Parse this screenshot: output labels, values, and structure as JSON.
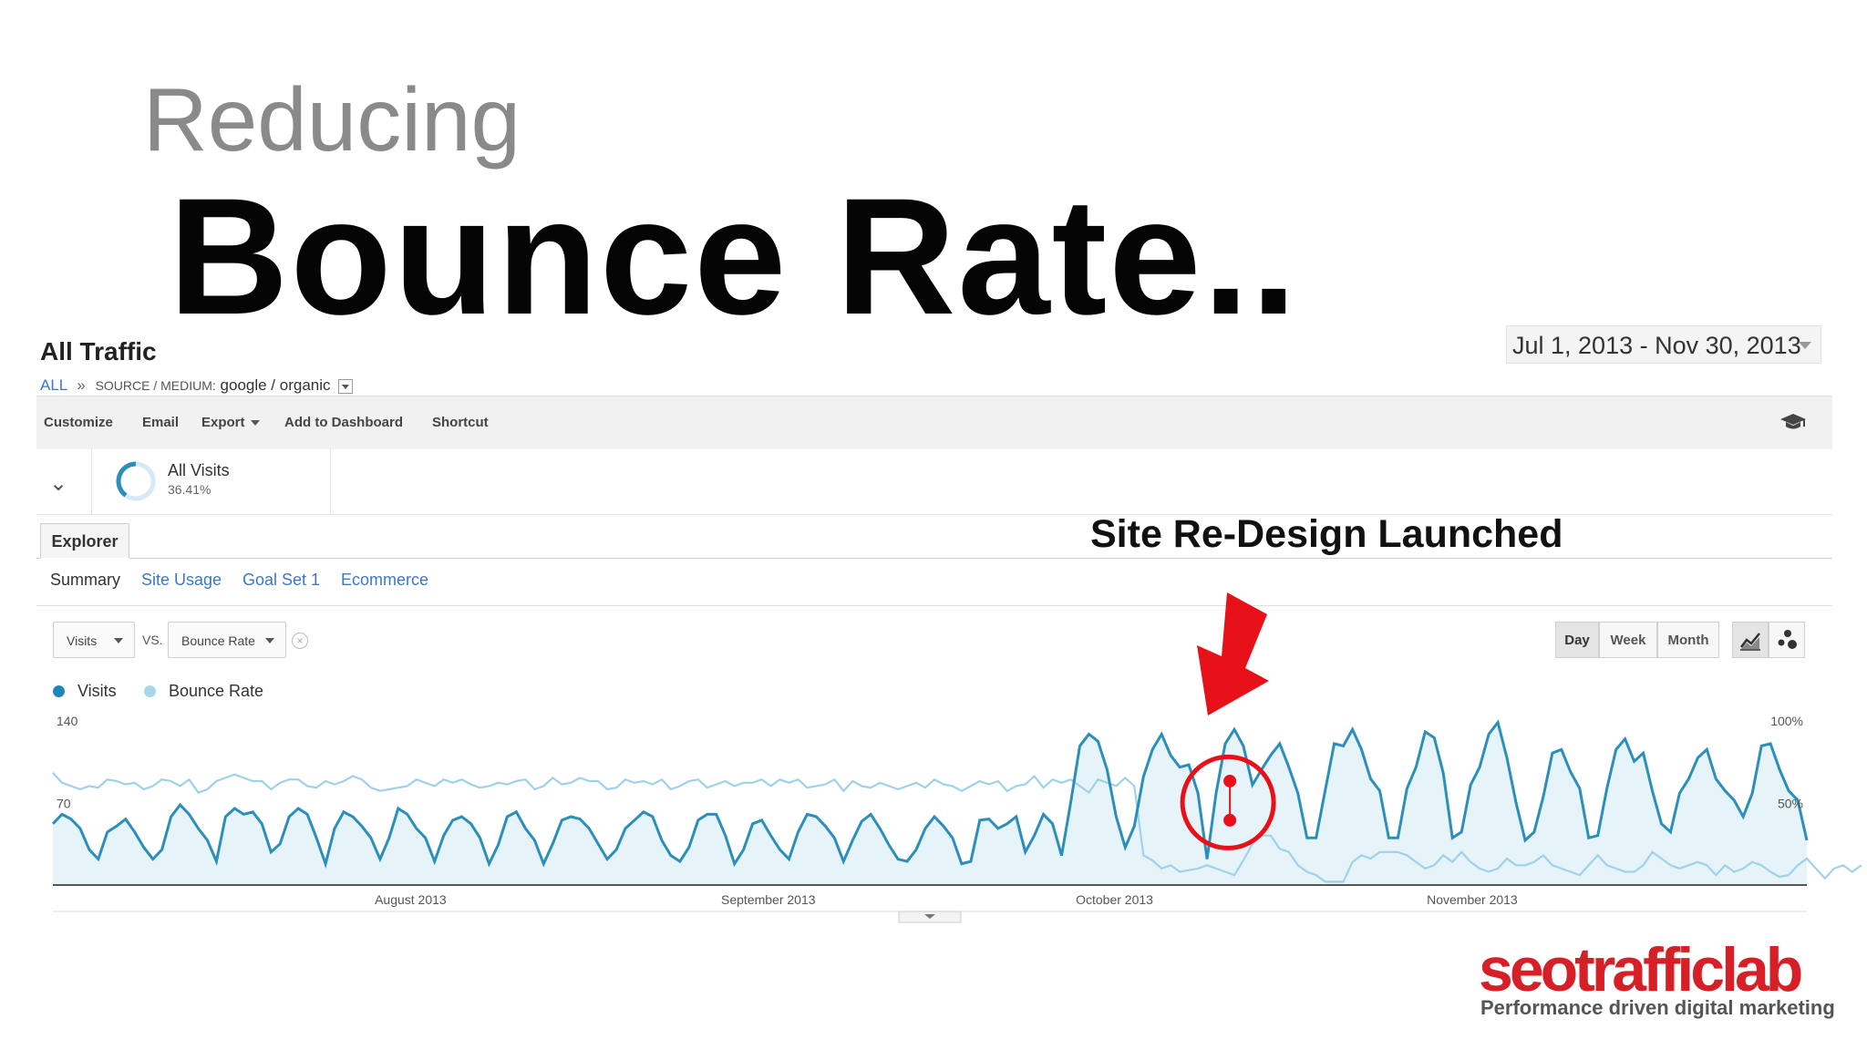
{
  "slide": {
    "subtitle": "Reducing",
    "title": "Bounce Rate..",
    "annotation": "Site Re-Design Launched",
    "brand": {
      "logo": "seotrafficlab",
      "tagline": "Performance driven digital marketing",
      "logo_color": "#d61f26"
    }
  },
  "ga": {
    "report_title": "All Traffic",
    "date_range": "Jul 1, 2013 - Nov 30, 2013",
    "breadcrumb": {
      "all": "ALL",
      "sep": "»",
      "dimension": "SOURCE / MEDIUM:",
      "value": "google / organic"
    },
    "toolbar": {
      "customize": "Customize",
      "email": "Email",
      "export": "Export",
      "add_to_dashboard": "Add to Dashboard",
      "shortcut": "Shortcut"
    },
    "segment": {
      "name": "All Visits",
      "percent": "36.41%"
    },
    "tabs": {
      "explorer": "Explorer"
    },
    "subtabs": {
      "summary": "Summary",
      "site_usage": "Site Usage",
      "goal_set": "Goal Set 1",
      "ecommerce": "Ecommerce"
    },
    "metric_primary": "Visits",
    "vs": "VS.",
    "metric_compare": "Bounce Rate",
    "granularity": {
      "day": "Day",
      "week": "Week",
      "month": "Month",
      "active": "Day"
    },
    "legend": {
      "visits": "Visits",
      "bounce": "Bounce Rate"
    },
    "colors": {
      "visits": "#2b8fba",
      "bounce": "#9fd2e8",
      "highlight": "#e8111a"
    }
  },
  "chart_data": {
    "type": "line",
    "x_range": [
      "2013-07-01",
      "2013-11-30"
    ],
    "x_tick_labels": [
      "August 2013",
      "September 2013",
      "October 2013",
      "November 2013"
    ],
    "y_left_ticks": [
      "140",
      "70"
    ],
    "y_left_range": [
      0,
      140
    ],
    "y_right_ticks": [
      "100%",
      "50%"
    ],
    "y_right_range": [
      0,
      100
    ],
    "series": [
      {
        "name": "Visits",
        "axis": "left",
        "values": [
          52,
          60,
          56,
          48,
          30,
          22,
          45,
          50,
          56,
          45,
          32,
          22,
          30,
          58,
          68,
          60,
          48,
          38,
          20,
          58,
          65,
          60,
          62,
          52,
          28,
          35,
          58,
          65,
          60,
          40,
          18,
          48,
          62,
          58,
          50,
          40,
          22,
          40,
          65,
          60,
          48,
          40,
          20,
          42,
          55,
          58,
          52,
          40,
          18,
          34,
          58,
          62,
          48,
          38,
          18,
          35,
          55,
          58,
          56,
          48,
          35,
          22,
          30,
          48,
          55,
          62,
          58,
          38,
          25,
          20,
          32,
          55,
          60,
          60,
          42,
          18,
          30,
          52,
          55,
          42,
          30,
          22,
          45,
          60,
          58,
          50,
          40,
          20,
          38,
          54,
          60,
          48,
          34,
          22,
          20,
          30,
          48,
          58,
          50,
          40,
          18,
          20,
          55,
          56,
          48,
          52,
          58,
          28,
          42,
          60,
          52,
          25,
          70,
          118,
          128,
          122,
          98,
          58,
          32,
          50,
          92,
          115,
          128,
          110,
          100,
          102,
          78,
          22,
          78,
          120,
          132,
          118,
          85,
          98,
          110,
          120,
          100,
          78,
          40,
          40,
          80,
          120,
          118,
          132,
          115,
          90,
          80,
          40,
          40,
          82,
          100,
          130,
          125,
          95,
          40,
          45,
          85,
          100,
          128,
          138,
          108,
          70,
          38,
          45,
          75,
          112,
          115,
          96,
          82,
          40,
          42,
          82,
          115,
          124,
          105,
          112,
          80,
          52,
          45,
          78,
          90,
          108,
          115,
          90,
          80,
          72,
          58,
          78,
          118,
          120,
          98,
          80,
          72,
          38
        ]
      },
      {
        "name": "Bounce Rate",
        "axis": "right",
        "values": [
          68,
          62,
          60,
          58,
          60,
          59,
          64,
          63,
          61,
          62,
          58,
          60,
          64,
          63,
          60,
          64,
          56,
          58,
          63,
          65,
          67,
          65,
          63,
          63,
          58,
          62,
          64,
          64,
          60,
          59,
          63,
          61,
          63,
          66,
          64,
          59,
          57,
          58,
          59,
          60,
          64,
          62,
          60,
          64,
          62,
          64,
          61,
          59,
          60,
          62,
          61,
          63,
          64,
          58,
          60,
          65,
          61,
          62,
          65,
          63,
          63,
          58,
          59,
          64,
          62,
          63,
          61,
          64,
          58,
          60,
          63,
          64,
          59,
          61,
          63,
          60,
          62,
          62,
          64,
          60,
          64,
          62,
          64,
          59,
          60,
          61,
          64,
          57,
          63,
          60,
          59,
          62,
          60,
          58,
          60,
          62,
          59,
          64,
          61,
          60,
          57,
          60,
          63,
          61,
          63,
          57,
          60,
          61,
          66,
          59,
          64,
          62,
          64,
          60,
          56,
          64,
          62,
          60,
          65,
          60,
          18,
          15,
          10,
          12,
          8,
          9,
          10,
          12,
          10,
          8,
          6,
          15,
          25,
          30,
          30,
          22,
          20,
          12,
          8,
          6,
          2,
          2,
          2,
          14,
          18,
          16,
          20,
          20,
          20,
          18,
          14,
          10,
          12,
          18,
          14,
          20,
          14,
          10,
          8,
          10,
          16,
          12,
          12,
          14,
          18,
          12,
          10,
          8,
          6,
          12,
          18,
          12,
          10,
          8,
          8,
          12,
          20,
          16,
          12,
          10,
          12,
          14,
          12,
          6,
          12,
          8,
          10,
          14,
          12,
          8,
          5,
          6,
          12,
          16,
          10,
          4,
          10,
          12,
          8,
          12
        ]
      }
    ],
    "annotation_date": "2013-10-11",
    "grid": false
  }
}
